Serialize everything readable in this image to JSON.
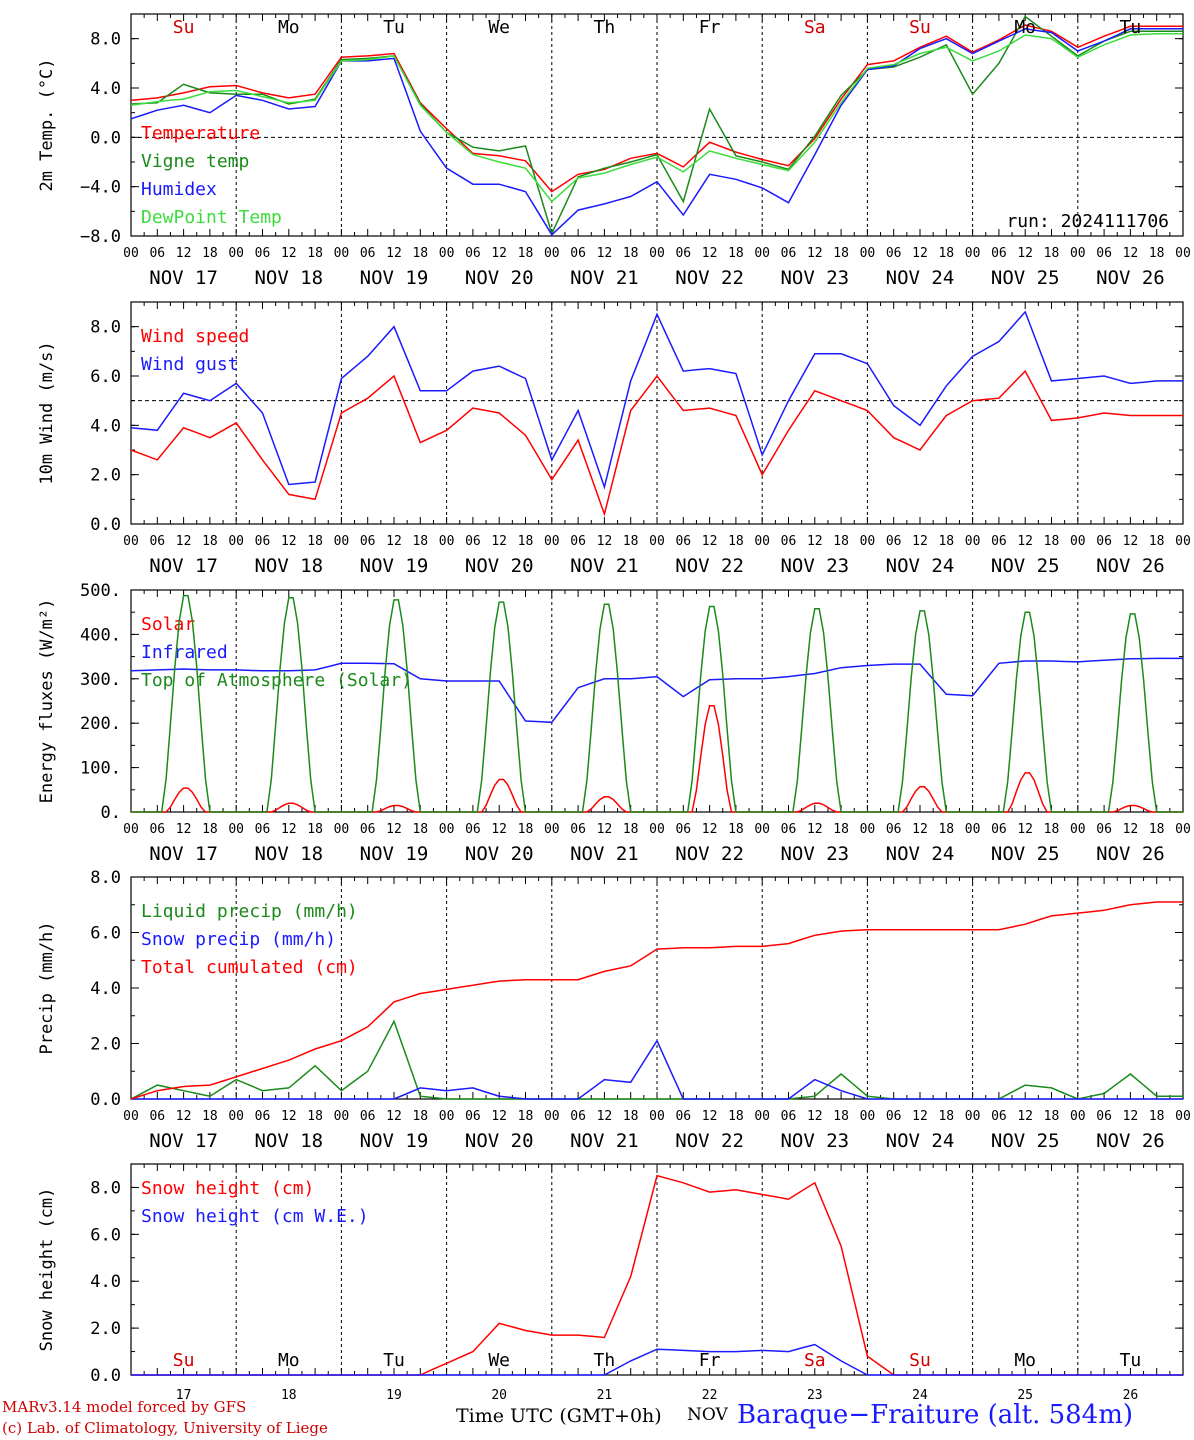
{
  "chart_data": [
    {
      "type": "line",
      "ylabel": "2m Temp. (°C)",
      "ylim": [
        -8,
        10
      ],
      "yticks": [
        "−8.0",
        "−4.0",
        "0.0",
        "4.0",
        "8.0"
      ],
      "ytick_values": [
        -8,
        -4,
        0,
        4,
        8
      ],
      "reference_line": 0,
      "day_names_top": [
        "Su",
        "Mo",
        "Tu",
        "We",
        "Th",
        "Fr",
        "Sa",
        "Su",
        "Mo",
        "Tu"
      ],
      "day_colors_top": [
        "#d00000",
        "#000000",
        "#000000",
        "#000000",
        "#000000",
        "#000000",
        "#d00000",
        "#d00000",
        "#000000",
        "#000000"
      ],
      "run_label": "run: 2024111706",
      "x": [
        0,
        6,
        12,
        18,
        24,
        30,
        36,
        42,
        48,
        54,
        60,
        66,
        72,
        78,
        84,
        90,
        96,
        102,
        108,
        114,
        120,
        126,
        132,
        138,
        144,
        150,
        156,
        162,
        168,
        174,
        180,
        186,
        192,
        198,
        204,
        210,
        216,
        222,
        228,
        234
      ],
      "series": [
        {
          "name": "Temperature",
          "color": "#ff0000",
          "values": [
            3.0,
            3.2,
            3.6,
            4.1,
            4.2,
            3.6,
            3.2,
            3.5,
            6.5,
            6.6,
            6.8,
            2.8,
            0.7,
            -1.3,
            -1.5,
            -1.9,
            -4.4,
            -3.0,
            -2.6,
            -1.7,
            -1.3,
            -2.4,
            -0.4,
            -1.2,
            -1.8,
            -2.3,
            -0.1,
            3.1,
            5.9,
            6.2,
            7.3,
            8.2,
            6.9,
            7.9,
            9.1,
            8.6,
            7.3,
            8.2,
            9.0,
            9.0
          ]
        },
        {
          "name": "Vigne temp",
          "color": "#1a8a1a",
          "values": [
            2.7,
            2.8,
            4.3,
            3.6,
            3.5,
            3.5,
            2.7,
            3.1,
            6.3,
            6.4,
            6.6,
            2.7,
            0.4,
            -0.8,
            -1.1,
            -0.7,
            -7.8,
            -3.2,
            -2.5,
            -2.0,
            -1.4,
            -5.2,
            2.3,
            -1.5,
            -2.0,
            -2.6,
            0.1,
            3.4,
            5.5,
            5.7,
            6.5,
            7.5,
            3.5,
            6.0,
            9.8,
            8.2,
            6.6,
            7.8,
            8.6,
            8.6
          ]
        },
        {
          "name": "Humidex",
          "color": "#1a1aff",
          "values": [
            1.5,
            2.2,
            2.6,
            2.0,
            3.4,
            3.0,
            2.3,
            2.5,
            6.2,
            6.2,
            6.4,
            0.5,
            -2.5,
            -3.8,
            -3.8,
            -4.4,
            -7.9,
            -5.9,
            -5.4,
            -4.8,
            -3.6,
            -6.3,
            -3.0,
            -3.4,
            -4.1,
            -5.3,
            -1.4,
            2.6,
            5.5,
            5.8,
            7.2,
            8.0,
            6.8,
            7.8,
            8.8,
            8.5,
            7.0,
            7.8,
            8.8,
            8.8
          ]
        },
        {
          "name": "DewPoint Temp",
          "color": "#3cdc3c",
          "values": [
            2.6,
            2.9,
            3.1,
            3.7,
            3.8,
            3.3,
            2.8,
            3.0,
            6.2,
            6.3,
            6.6,
            2.6,
            0.4,
            -1.4,
            -2.0,
            -2.5,
            -5.2,
            -3.3,
            -2.9,
            -2.2,
            -1.6,
            -2.8,
            -1.1,
            -1.7,
            -2.2,
            -2.7,
            -0.4,
            2.8,
            5.6,
            5.9,
            6.8,
            7.3,
            6.2,
            7.0,
            8.3,
            8.0,
            6.5,
            7.5,
            8.3,
            8.4
          ]
        }
      ]
    },
    {
      "type": "line",
      "ylabel": "10m Wind (m/s)",
      "ylim": [
        0,
        9
      ],
      "yticks": [
        "0.0",
        "2.0",
        "4.0",
        "6.0",
        "8.0"
      ],
      "ytick_values": [
        0,
        2,
        4,
        6,
        8
      ],
      "reference_line": 5,
      "x": [
        0,
        6,
        12,
        18,
        24,
        30,
        36,
        42,
        48,
        54,
        60,
        66,
        72,
        78,
        84,
        90,
        96,
        102,
        108,
        114,
        120,
        126,
        132,
        138,
        144,
        150,
        156,
        162,
        168,
        174,
        180,
        186,
        192,
        198,
        204,
        210,
        216,
        222,
        228,
        234
      ],
      "series": [
        {
          "name": "Wind speed",
          "color": "#ff0000",
          "values": [
            3.0,
            2.6,
            3.9,
            3.5,
            4.1,
            2.6,
            1.2,
            1.0,
            4.5,
            5.1,
            6.0,
            3.3,
            3.8,
            4.7,
            4.5,
            3.6,
            1.8,
            3.4,
            0.4,
            4.6,
            6.0,
            4.6,
            4.7,
            4.4,
            2.0,
            3.8,
            5.4,
            5.0,
            4.6,
            3.5,
            3.0,
            4.4,
            5.0,
            5.1,
            6.2,
            4.2,
            4.3,
            4.5,
            4.4,
            4.4
          ]
        },
        {
          "name": "Wind gust",
          "color": "#1a1aff",
          "values": [
            3.9,
            3.8,
            5.3,
            5.0,
            5.7,
            4.5,
            1.6,
            1.7,
            5.9,
            6.8,
            8.0,
            5.4,
            5.4,
            6.2,
            6.4,
            5.9,
            2.6,
            4.6,
            1.5,
            5.8,
            8.5,
            6.2,
            6.3,
            6.1,
            2.8,
            5.0,
            6.9,
            6.9,
            6.5,
            4.8,
            4.0,
            5.6,
            6.8,
            7.4,
            8.6,
            5.8,
            5.9,
            6.0,
            5.7,
            5.8
          ]
        }
      ]
    },
    {
      "type": "line",
      "ylabel": "Energy fluxes (W/m²)",
      "ylim": [
        0,
        500
      ],
      "yticks": [
        "0.",
        "100.",
        "200.",
        "300.",
        "400.",
        "500."
      ],
      "ytick_values": [
        0,
        100,
        200,
        300,
        400,
        500
      ],
      "x": [
        0,
        6,
        12,
        18,
        24,
        30,
        36,
        42,
        48,
        54,
        60,
        66,
        72,
        78,
        84,
        90,
        96,
        102,
        108,
        114,
        120,
        126,
        132,
        138,
        144,
        150,
        156,
        162,
        168,
        174,
        180,
        186,
        192,
        198,
        204,
        210,
        216,
        222,
        228,
        234
      ],
      "series": [
        {
          "name": "Solar",
          "color": "#ff0000",
          "daily_peaks": [
            55,
            20,
            15,
            75,
            35,
            245,
            20,
            58,
            90,
            15
          ]
        },
        {
          "name": "Infrared",
          "color": "#1a1aff",
          "values": [
            318,
            320,
            322,
            320,
            320,
            318,
            318,
            320,
            335,
            335,
            334,
            300,
            295,
            295,
            295,
            205,
            202,
            280,
            300,
            300,
            305,
            260,
            298,
            300,
            300,
            305,
            312,
            325,
            330,
            333,
            333,
            265,
            262,
            335,
            340,
            340,
            338,
            342,
            345,
            346
          ]
        },
        {
          "name": "Top of Atmosphere (Solar)",
          "color": "#1a8a1a",
          "daily_peaks": [
            495,
            490,
            485,
            480,
            475,
            470,
            465,
            460,
            457,
            453
          ]
        }
      ]
    },
    {
      "type": "line",
      "ylabel": "Precip (mm/h)",
      "ylim": [
        0,
        8
      ],
      "yticks": [
        "0.0",
        "2.0",
        "4.0",
        "6.0",
        "8.0"
      ],
      "ytick_values": [
        0,
        2,
        4,
        6,
        8
      ],
      "x": [
        0,
        6,
        12,
        18,
        24,
        30,
        36,
        42,
        48,
        54,
        60,
        66,
        72,
        78,
        84,
        90,
        96,
        102,
        108,
        114,
        120,
        126,
        132,
        138,
        144,
        150,
        156,
        162,
        168,
        174,
        180,
        186,
        192,
        198,
        204,
        210,
        216,
        222,
        228,
        234
      ],
      "series": [
        {
          "name": "Liquid precip (mm/h)",
          "color": "#1a8a1a",
          "values": [
            0.0,
            0.5,
            0.3,
            0.1,
            0.7,
            0.3,
            0.4,
            1.2,
            0.3,
            1.0,
            2.8,
            0.1,
            0.0,
            0.0,
            0.0,
            0.0,
            0.0,
            0.0,
            0.0,
            0.0,
            0.0,
            0.0,
            0.0,
            0.0,
            0.0,
            0.0,
            0.1,
            0.9,
            0.1,
            0.0,
            0.0,
            0.0,
            0.0,
            0.0,
            0.5,
            0.4,
            0.0,
            0.2,
            0.9,
            0.1
          ]
        },
        {
          "name": "Snow precip (mm/h)",
          "color": "#1a1aff",
          "values": [
            0.0,
            0.0,
            0.0,
            0.0,
            0.0,
            0.0,
            0.0,
            0.0,
            0.0,
            0.0,
            0.0,
            0.4,
            0.3,
            0.4,
            0.1,
            0.0,
            0.0,
            0.0,
            0.7,
            0.6,
            2.1,
            0.0,
            0.0,
            0.0,
            0.0,
            0.0,
            0.7,
            0.3,
            0.0,
            0.0,
            0.0,
            0.0,
            0.0,
            0.0,
            0.0,
            0.0,
            0.0,
            0.0,
            0.0,
            0.0
          ]
        },
        {
          "name": "Total cumulated (cm)",
          "color": "#ff0000",
          "values": [
            0.0,
            0.3,
            0.45,
            0.5,
            0.8,
            1.1,
            1.4,
            1.8,
            2.1,
            2.6,
            3.5,
            3.8,
            3.95,
            4.1,
            4.25,
            4.3,
            4.3,
            4.3,
            4.6,
            4.8,
            5.4,
            5.45,
            5.45,
            5.5,
            5.5,
            5.6,
            5.9,
            6.05,
            6.1,
            6.1,
            6.1,
            6.1,
            6.1,
            6.1,
            6.3,
            6.6,
            6.7,
            6.8,
            7.0,
            7.1
          ]
        }
      ]
    },
    {
      "type": "line",
      "ylabel": "Snow height (cm)",
      "ylim": [
        0,
        9
      ],
      "yticks": [
        "0.0",
        "2.0",
        "4.0",
        "6.0",
        "8.0"
      ],
      "ytick_values": [
        0,
        2,
        4,
        6,
        8
      ],
      "day_names_bottom": [
        "Su",
        "Mo",
        "Tu",
        "We",
        "Th",
        "Fr",
        "Sa",
        "Su",
        "Mo",
        "Tu"
      ],
      "day_colors_bottom": [
        "#d00000",
        "#000000",
        "#000000",
        "#000000",
        "#000000",
        "#000000",
        "#d00000",
        "#d00000",
        "#000000",
        "#000000"
      ],
      "date_numbers": [
        "17",
        "18",
        "19",
        "20",
        "21",
        "22",
        "23",
        "24",
        "25",
        "26"
      ],
      "x": [
        0,
        6,
        12,
        18,
        24,
        30,
        36,
        42,
        48,
        54,
        60,
        66,
        72,
        78,
        84,
        90,
        96,
        102,
        108,
        114,
        120,
        126,
        132,
        138,
        144,
        150,
        156,
        162,
        168,
        174,
        180,
        186,
        192,
        198,
        204,
        210,
        216,
        222,
        228,
        234
      ],
      "series": [
        {
          "name": "Snow height (cm)",
          "color": "#ff0000",
          "values": [
            0,
            0,
            0,
            0,
            0,
            0,
            0,
            0,
            0,
            0,
            0,
            0,
            0.5,
            1.0,
            2.2,
            1.9,
            1.7,
            1.7,
            1.6,
            4.2,
            8.5,
            8.2,
            7.8,
            7.9,
            7.7,
            7.5,
            8.2,
            5.5,
            0.8,
            0,
            0,
            0,
            0,
            0,
            0,
            0,
            0,
            0,
            0,
            0
          ]
        },
        {
          "name": "Snow height (cm W.E.)",
          "color": "#1a1aff",
          "values": [
            0,
            0,
            0,
            0,
            0,
            0,
            0,
            0,
            0,
            0,
            0,
            0,
            0,
            0,
            0,
            0,
            0,
            0,
            0,
            0.6,
            1.1,
            1.05,
            1.0,
            1.0,
            1.05,
            1.0,
            1.3,
            0.6,
            0,
            0,
            0,
            0,
            0,
            0,
            0,
            0,
            0,
            0,
            0,
            0
          ]
        }
      ]
    }
  ],
  "shared_axis": {
    "hour_ticks": [
      "00",
      "06",
      "12",
      "18"
    ],
    "final_hour": "00",
    "date_labels": [
      "NOV 17",
      "NOV 18",
      "NOV 19",
      "NOV 20",
      "NOV 21",
      "NOV 22",
      "NOV 23",
      "NOV 24",
      "NOV 25",
      "NOV 26"
    ]
  },
  "footer": {
    "model_line": "MARv3.14 model forced by GFS",
    "copyright_line": "(c) Lab. of Climatology, University of Liege",
    "time_label": "Time UTC (GMT+0h)",
    "month_label": "NOV",
    "station": "Baraque−Fraiture (alt. 584m)"
  }
}
